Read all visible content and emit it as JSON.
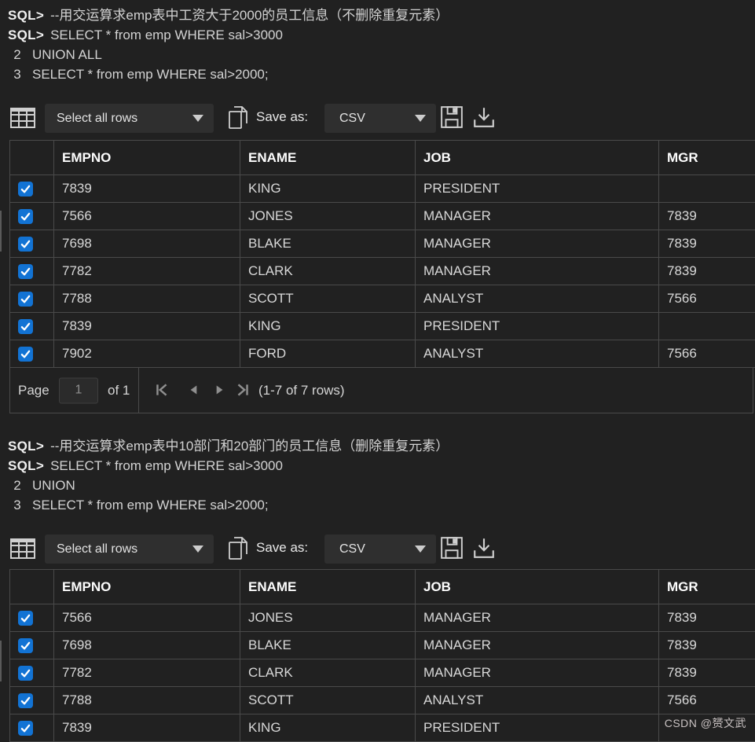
{
  "columns": [
    "EMPNO",
    "ENAME",
    "JOB",
    "MGR"
  ],
  "terminal1": {
    "lines": [
      {
        "prompt": "SQL>",
        "text": "--用交运算求emp表中工资大于2000的员工信息（不删除重复元素）"
      },
      {
        "prompt": "SQL>",
        "text": "SELECT * from emp WHERE sal>3000"
      },
      {
        "num": "2",
        "text": "UNION ALL"
      },
      {
        "num": "3",
        "text": "SELECT * from emp WHERE sal>2000;"
      }
    ]
  },
  "terminal2": {
    "lines": [
      {
        "prompt": "SQL>",
        "text": "--用交运算求emp表中10部门和20部门的员工信息（删除重复元素）"
      },
      {
        "prompt": "SQL>",
        "text": "SELECT * from emp WHERE sal>3000"
      },
      {
        "num": "2",
        "text": "UNION"
      },
      {
        "num": "3",
        "text": "SELECT * from emp WHERE sal>2000;"
      }
    ]
  },
  "toolbar": {
    "row_selector_value": "Select all rows",
    "save_as_label": "Save as:",
    "format_value": "CSV",
    "icons": [
      "grid-icon",
      "copy-icon",
      "save-icon",
      "download-icon"
    ]
  },
  "table1": {
    "rows": [
      [
        "7839",
        "KING",
        "PRESIDENT",
        ""
      ],
      [
        "7566",
        "JONES",
        "MANAGER",
        "7839"
      ],
      [
        "7698",
        "BLAKE",
        "MANAGER",
        "7839"
      ],
      [
        "7782",
        "CLARK",
        "MANAGER",
        "7839"
      ],
      [
        "7788",
        "SCOTT",
        "ANALYST",
        "7566"
      ],
      [
        "7839",
        "KING",
        "PRESIDENT",
        ""
      ],
      [
        "7902",
        "FORD",
        "ANALYST",
        "7566"
      ]
    ]
  },
  "table2": {
    "rows": [
      [
        "7566",
        "JONES",
        "MANAGER",
        "7839"
      ],
      [
        "7698",
        "BLAKE",
        "MANAGER",
        "7839"
      ],
      [
        "7782",
        "CLARK",
        "MANAGER",
        "7839"
      ],
      [
        "7788",
        "SCOTT",
        "ANALYST",
        "7566"
      ],
      [
        "7839",
        "KING",
        "PRESIDENT",
        ""
      ]
    ]
  },
  "pagination": {
    "page_label": "Page",
    "page_value": "1",
    "of_label": "of 1",
    "range_text": "(1-7 of 7 rows)"
  },
  "watermark": {
    "text": "CSDN @赟文武"
  },
  "colors": {
    "background": "#212121",
    "border": "#4a4a4a",
    "checkbox_blue": "#1273d4",
    "text": "#d5d5d5"
  }
}
